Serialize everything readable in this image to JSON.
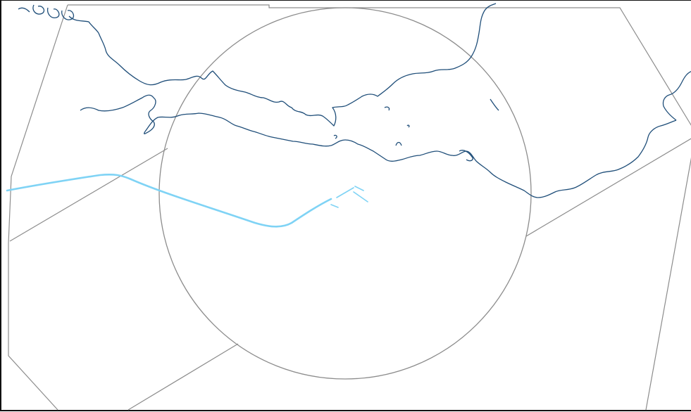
{
  "map": {
    "colors": {
      "background": "#ffffff",
      "frame": "#111111",
      "coastline": "#1f4e79",
      "airspace_boundary": "#8c8c8c",
      "flight_track": "#7fd3f5"
    },
    "layers": [
      "coastline",
      "airspace-boundaries",
      "control-zone-circle",
      "flight-track",
      "runway-markers"
    ]
  }
}
